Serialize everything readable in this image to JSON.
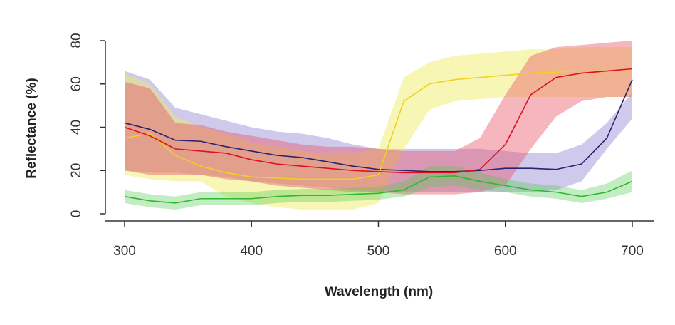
{
  "chart_data": {
    "type": "line",
    "title": "",
    "xlabel": "Wavelength (nm)",
    "ylabel": "Reflectance (%)",
    "xlim": [
      300,
      700
    ],
    "ylim": [
      0,
      80
    ],
    "xticks": [
      "300",
      "400",
      "500",
      "600",
      "700"
    ],
    "yticks": [
      "0",
      "20",
      "40",
      "60",
      "80"
    ],
    "grid": false,
    "x": [
      300,
      320,
      340,
      360,
      380,
      400,
      420,
      440,
      460,
      480,
      500,
      520,
      540,
      560,
      580,
      600,
      620,
      640,
      660,
      680,
      700
    ],
    "series": [
      {
        "color": "#2a2470",
        "band": "rgba(140,128,210,0.42)",
        "mean": [
          42,
          39,
          34,
          33.5,
          31,
          29,
          27,
          26,
          24,
          22,
          20.5,
          20,
          19.5,
          19.5,
          20,
          21,
          21,
          20.5,
          23,
          35,
          62
        ],
        "upper": [
          66,
          62,
          49,
          46,
          43,
          40,
          38,
          37,
          35,
          32,
          30,
          30,
          30,
          30,
          30,
          29,
          28,
          28,
          32,
          42,
          56
        ],
        "lower": [
          20,
          19,
          19,
          18,
          17,
          15,
          14,
          13,
          12,
          11,
          10,
          10,
          10,
          10,
          10,
          10,
          10,
          11,
          15,
          30,
          44
        ]
      },
      {
        "color": "#f0d020",
        "band": "rgba(240,235,90,0.45)",
        "mean": [
          35,
          37,
          27,
          22,
          19,
          17,
          16.5,
          16,
          16,
          16,
          18,
          52,
          60,
          62,
          63,
          64,
          65,
          65.5,
          66,
          66,
          66
        ],
        "upper": [
          65,
          60,
          45,
          40,
          37,
          33,
          31,
          29,
          28,
          28,
          30,
          63,
          70,
          73,
          74,
          75,
          76,
          76,
          77,
          77,
          77
        ],
        "lower": [
          18,
          16,
          15,
          15,
          8,
          5,
          3,
          2,
          2,
          2,
          5,
          30,
          48,
          52,
          53,
          54,
          54,
          54,
          54,
          54,
          54
        ]
      },
      {
        "color": "#e01020",
        "band": "rgba(232,80,100,0.42)",
        "mean": [
          40,
          36,
          30,
          29,
          28,
          25,
          23,
          22,
          21,
          20,
          19.5,
          19,
          19,
          19,
          20.5,
          32,
          55,
          63,
          65,
          66,
          67
        ],
        "upper": [
          61,
          58,
          42,
          41,
          38,
          36,
          34,
          32,
          31,
          31,
          30,
          29,
          29,
          29,
          35,
          55,
          73,
          77,
          78,
          79,
          80
        ],
        "lower": [
          20,
          18,
          18,
          18,
          16,
          15,
          13,
          12,
          11,
          10,
          10,
          9,
          9,
          9,
          10,
          13,
          30,
          45,
          52,
          54,
          54
        ]
      },
      {
        "color": "#2db82d",
        "band": "rgba(80,200,80,0.35)",
        "mean": [
          8,
          6,
          5,
          7,
          7,
          7,
          8,
          8.5,
          8.5,
          9,
          9.5,
          11,
          17,
          17.5,
          15,
          13,
          11,
          10,
          8,
          10,
          15
        ],
        "upper": [
          11,
          9,
          8,
          10,
          10,
          10,
          11,
          11.5,
          11.5,
          12,
          12.5,
          15,
          22,
          22,
          19,
          16,
          14,
          13,
          11,
          14,
          20
        ],
        "lower": [
          5,
          3,
          2,
          4,
          4,
          4,
          5,
          5.5,
          5.5,
          6,
          6.5,
          8,
          12,
          13,
          11,
          10,
          8,
          7,
          5,
          7,
          10
        ]
      }
    ]
  }
}
